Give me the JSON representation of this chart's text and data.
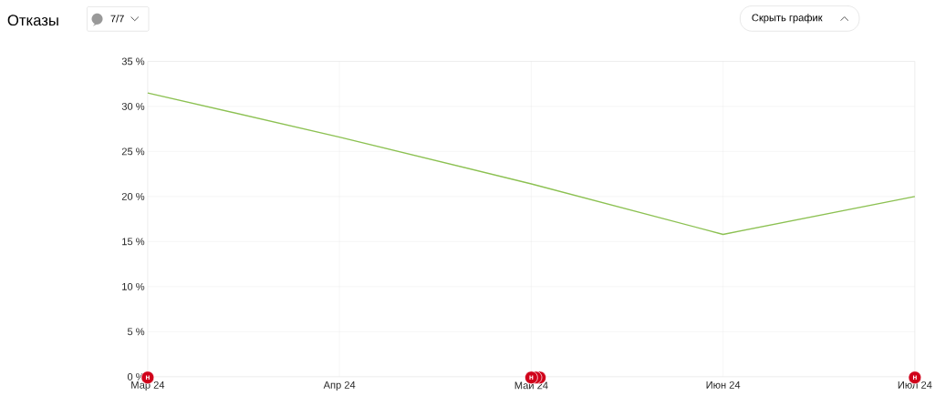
{
  "chart_data": {
    "type": "line",
    "title": "Отказы",
    "categories": [
      "Мар 24",
      "Апр 24",
      "Май 24",
      "Июн 24",
      "Июл 24"
    ],
    "series": [
      {
        "color": "#8cc152",
        "values": [
          31.5,
          26.6,
          21.4,
          15.8,
          20.0
        ]
      }
    ],
    "ylim": [
      0,
      35
    ],
    "yticks": [
      {
        "value": 0,
        "label": "0 %"
      },
      {
        "value": 5,
        "label": "5 %"
      },
      {
        "value": 10,
        "label": "10 %"
      },
      {
        "value": 15,
        "label": "15 %"
      },
      {
        "value": 20,
        "label": "20 %"
      },
      {
        "value": 25,
        "label": "25 %"
      },
      {
        "value": 30,
        "label": "30 %"
      },
      {
        "value": 35,
        "label": "35 %"
      }
    ],
    "grid": true,
    "marker": "none",
    "line_style": "solid",
    "annotations": [
      "7/7",
      "Скрыть график",
      "н",
      "н",
      "н"
    ]
  }
}
